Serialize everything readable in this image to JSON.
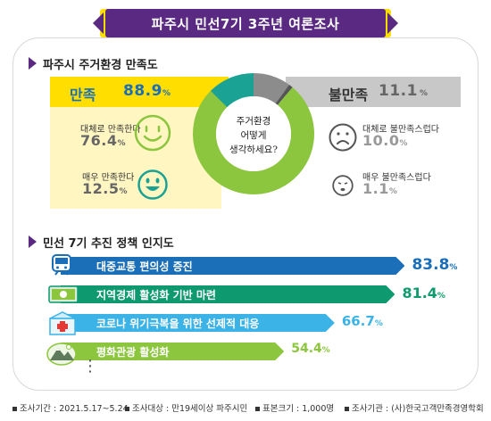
{
  "title": "파주시 민선7기 3주년 여론조사",
  "section1": {
    "heading": "파주시 주거환경 만족도",
    "question": [
      "주거환경",
      "어떻게",
      "생각하세요?"
    ],
    "satisfied": {
      "label": "만족",
      "value": "88.9",
      "unit": "%"
    },
    "dissatisfied": {
      "label": "불만족",
      "value": "11.1",
      "unit": "%"
    },
    "items": [
      {
        "label": "대체로 만족한다",
        "value": "76.4",
        "unit": "%",
        "icon": "smile-face-icon"
      },
      {
        "label": "매우 만족한다",
        "value": "12.5",
        "unit": "%",
        "icon": "big-smile-face-icon"
      },
      {
        "label": "대체로 불만족스럽다",
        "value": "10.0",
        "unit": "%",
        "icon": "frown-face-icon"
      },
      {
        "label": "매우 불만족스럽다",
        "value": "1.1",
        "unit": "%",
        "icon": "sad-face-icon"
      }
    ]
  },
  "section2": {
    "heading": "민선 7기 추진 정책 인지도",
    "ellipsis": "⋮"
  },
  "chart_data": [
    {
      "type": "pie",
      "title": "파주시 주거환경 만족도",
      "categories": [
        "대체로 만족한다",
        "매우 만족한다",
        "대체로 불만족스럽다",
        "매우 불만족스럽다"
      ],
      "values": [
        76.4,
        12.5,
        10.0,
        1.1
      ],
      "colors": [
        "#8cc63f",
        "#1aa394",
        "#8c8c8c",
        "#555555"
      ],
      "donut": true
    },
    {
      "type": "bar",
      "title": "민선 7기 추진 정책 인지도",
      "orientation": "horizontal",
      "categories": [
        "대중교통 편의성 증진",
        "지역경제 활성화 기반 마련",
        "코로나 위기극복을 위한 선제적 대응",
        "평화관광 활성화"
      ],
      "values": [
        83.8,
        81.4,
        66.7,
        54.4
      ],
      "unit": "%",
      "colors": [
        "#1a6fb8",
        "#0e9a6e",
        "#3bb3e6",
        "#8cc63f"
      ],
      "value_colors": [
        "#1a6fb8",
        "#0e9a6e",
        "#3bb3e6",
        "#8cc63f"
      ],
      "icons": [
        "subway-icon",
        "money-card-icon",
        "hospital-icon",
        "mountain-landscape-icon"
      ]
    }
  ],
  "footer": {
    "period": "조사기간 : 2021.5.17~5.24",
    "target": "조사대상 : 만19세이상 파주시민",
    "sample": "표본크기 : 1,000명",
    "agency": "조사기관 : (사)한국고객만족경영학회"
  }
}
